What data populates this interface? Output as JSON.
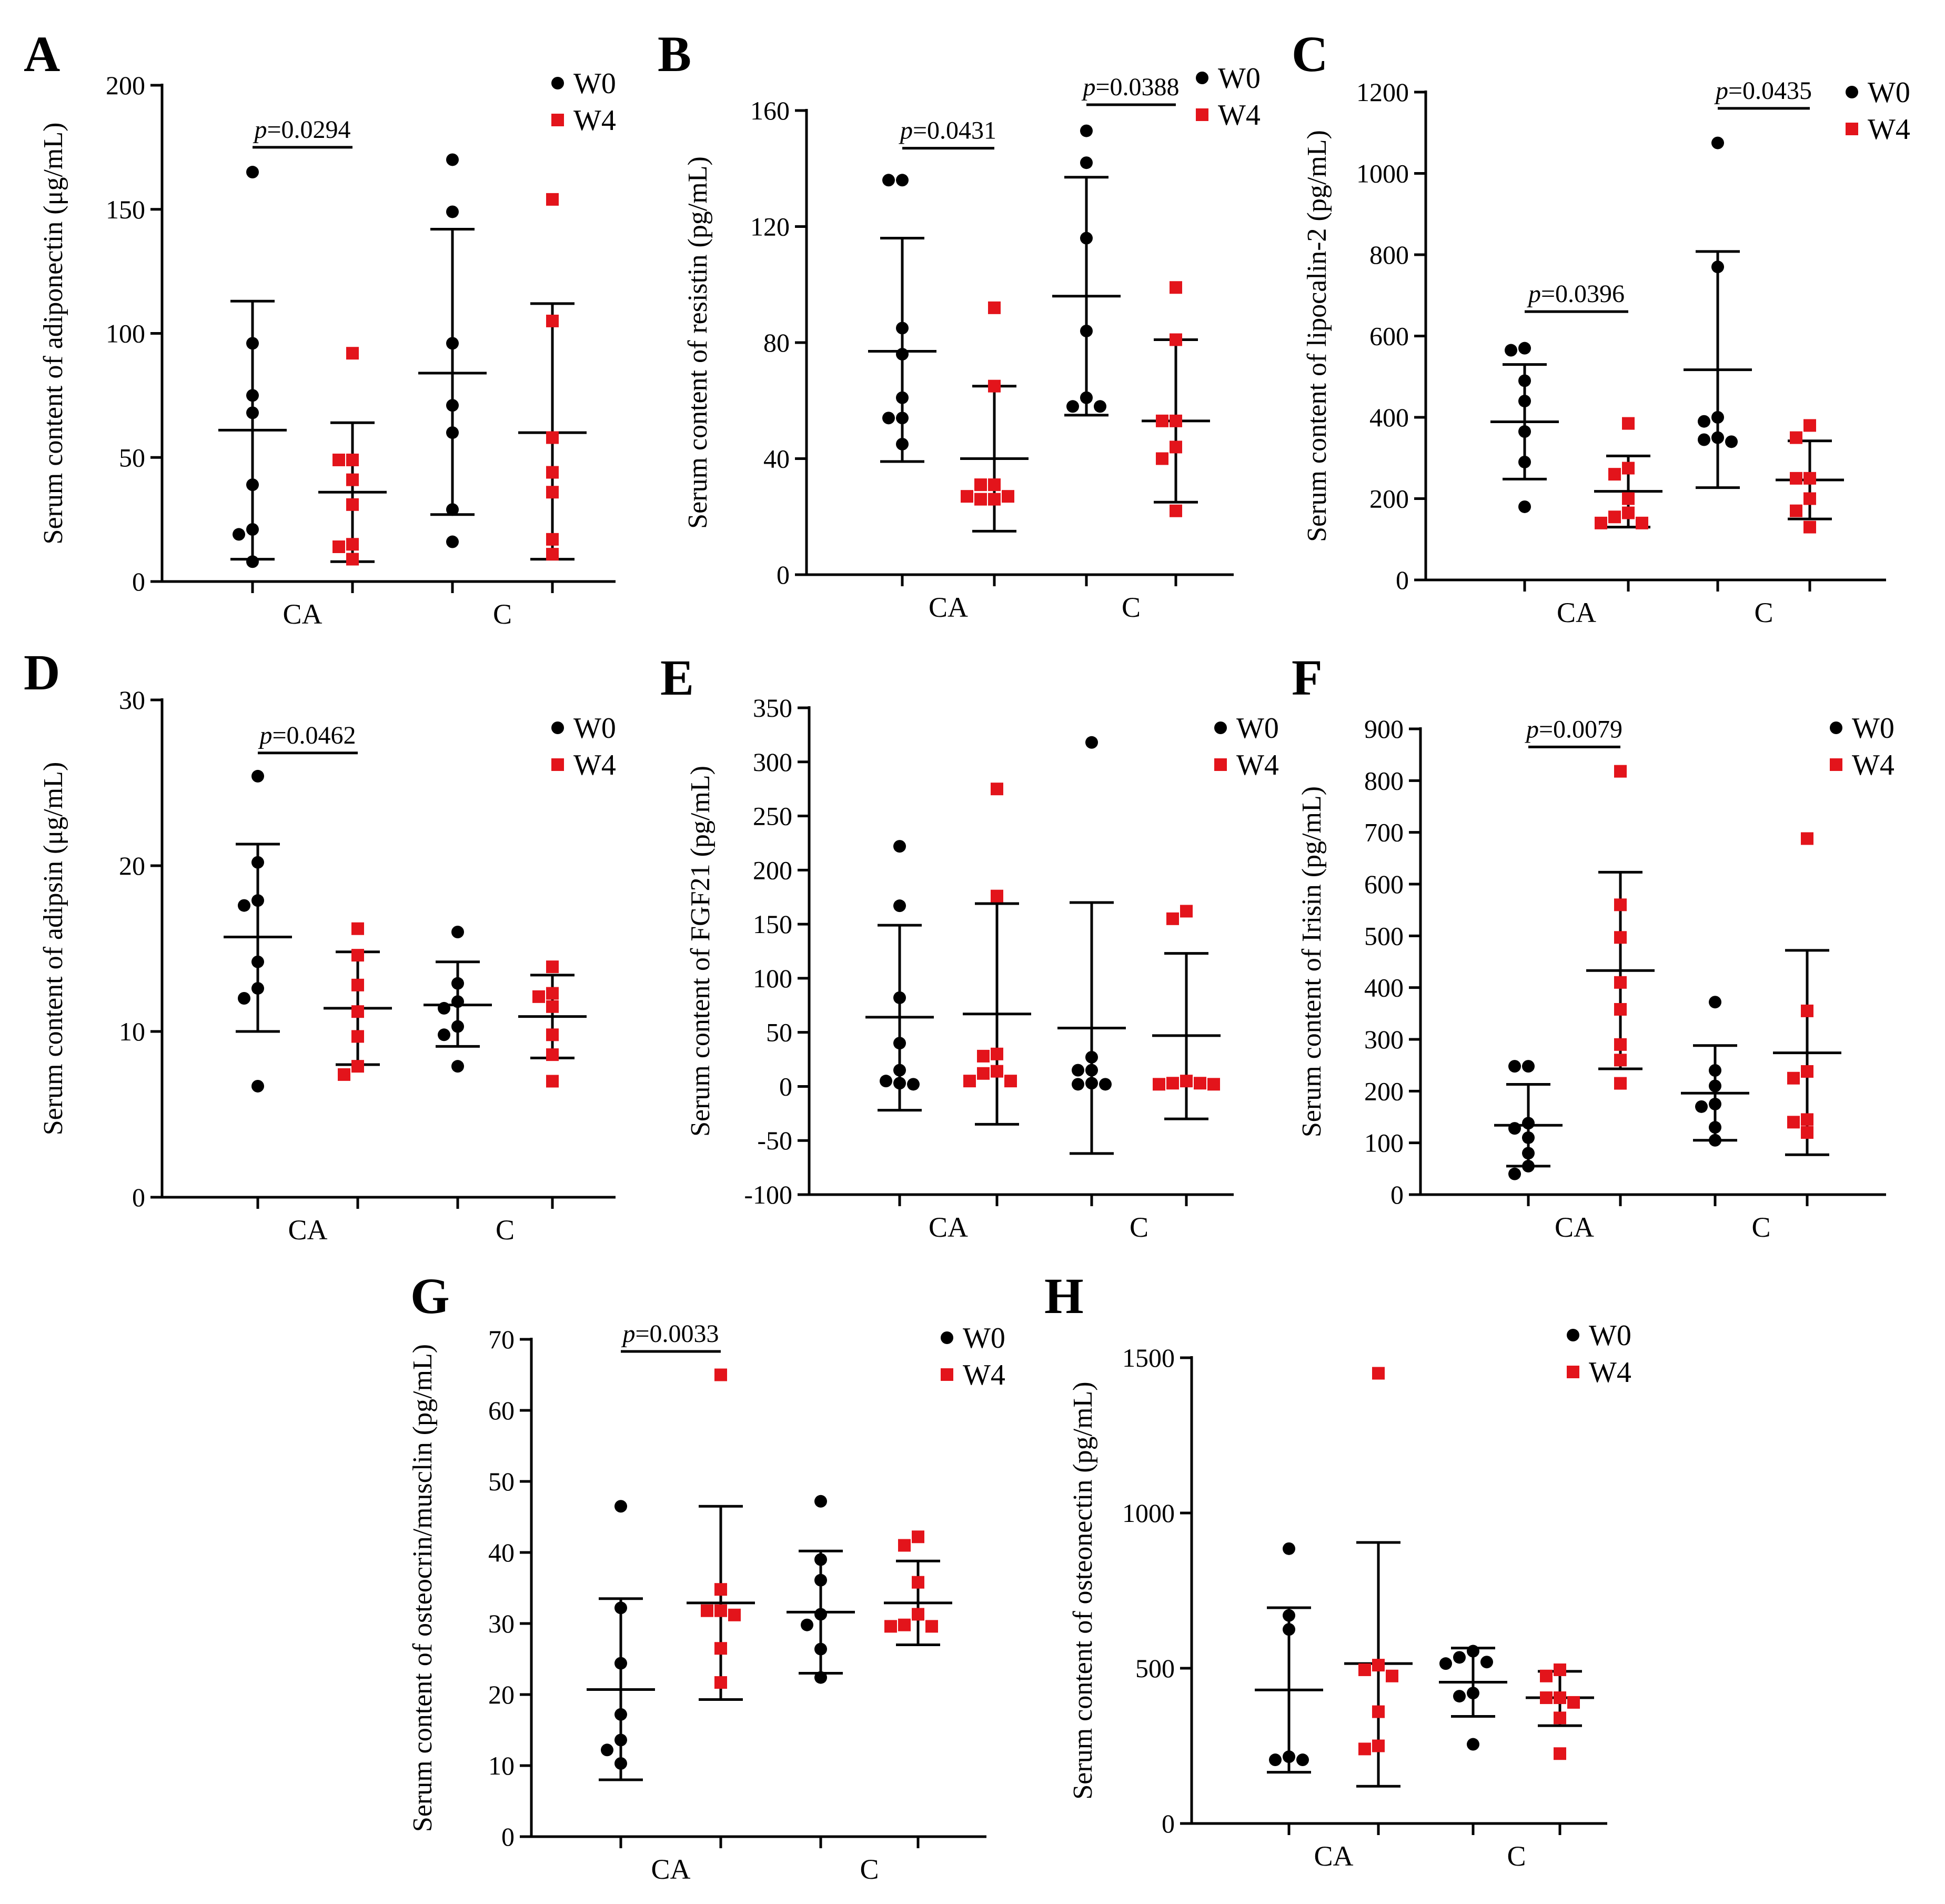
{
  "figure": {
    "legend": {
      "w0": {
        "label": "W0",
        "color": "#000000",
        "marker": "circle"
      },
      "w4": {
        "label": "W4",
        "color": "#e3141b",
        "marker": "square"
      }
    },
    "categories": [
      "CA",
      "C"
    ]
  },
  "chart_data": [
    {
      "panel": "A",
      "type": "scatter",
      "ylabel": "Serum content of adiponectin (μg/mL)",
      "ylim": [
        0,
        200
      ],
      "yticks": [
        "0",
        "50",
        "100",
        "150",
        "200"
      ],
      "categories": [
        "CA",
        "C"
      ],
      "series": [
        {
          "name": "W0",
          "category": "CA",
          "values": [
            165,
            96,
            75,
            68,
            39,
            21,
            19,
            8
          ],
          "mean": 61,
          "sd_low": 9,
          "sd_high": 113
        },
        {
          "name": "W4",
          "category": "CA",
          "values": [
            92,
            49,
            49,
            41,
            31,
            15,
            14,
            9
          ],
          "mean": 36,
          "sd_low": 8,
          "sd_high": 64
        },
        {
          "name": "W0",
          "category": "C",
          "values": [
            170,
            149,
            96,
            71,
            60,
            29,
            16
          ],
          "mean": 84,
          "sd_low": 27,
          "sd_high": 142
        },
        {
          "name": "W4",
          "category": "C",
          "values": [
            154,
            105,
            58,
            44,
            36,
            17,
            11
          ],
          "mean": 60,
          "sd_low": 9,
          "sd_high": 112
        }
      ],
      "significance": [
        {
          "category": "CA",
          "label": "p=0.0294",
          "y": 175
        }
      ]
    },
    {
      "panel": "B",
      "type": "scatter",
      "ylabel": "Serum content of resistin (pg/mL)",
      "ylim": [
        0,
        160
      ],
      "yticks": [
        "0",
        "40",
        "80",
        "120",
        "160"
      ],
      "categories": [
        "CA",
        "C"
      ],
      "series": [
        {
          "name": "W0",
          "category": "CA",
          "values": [
            136,
            136,
            85,
            76,
            61,
            54,
            54,
            45
          ],
          "mean": 77,
          "sd_low": 39,
          "sd_high": 116
        },
        {
          "name": "W4",
          "category": "CA",
          "values": [
            92,
            65,
            31,
            31,
            27,
            27,
            26,
            26
          ],
          "mean": 40,
          "sd_low": 15,
          "sd_high": 65
        },
        {
          "name": "W0",
          "category": "C",
          "values": [
            153,
            142,
            116,
            84,
            61,
            58,
            58
          ],
          "mean": 96,
          "sd_low": 55,
          "sd_high": 137
        },
        {
          "name": "W4",
          "category": "C",
          "values": [
            99,
            81,
            53,
            53,
            44,
            40,
            22
          ],
          "mean": 53,
          "sd_low": 25,
          "sd_high": 81
        }
      ],
      "significance": [
        {
          "category": "CA",
          "label": "p=0.0431",
          "y": 147
        },
        {
          "category": "C",
          "label": "p=0.0388",
          "y": 162
        }
      ]
    },
    {
      "panel": "C",
      "type": "scatter",
      "ylabel": "Serum content of lipocalin-2 (pg/mL)",
      "ylim": [
        0,
        1200
      ],
      "yticks": [
        "0",
        "200",
        "400",
        "600",
        "800",
        "1000",
        "1200"
      ],
      "categories": [
        "CA",
        "C"
      ],
      "series": [
        {
          "name": "W0",
          "category": "CA",
          "values": [
            570,
            565,
            490,
            440,
            365,
            290,
            180
          ],
          "mean": 389,
          "sd_low": 248,
          "sd_high": 530
        },
        {
          "name": "W4",
          "category": "CA",
          "values": [
            385,
            275,
            260,
            200,
            165,
            155,
            140,
            140
          ],
          "mean": 218,
          "sd_low": 130,
          "sd_high": 305
        },
        {
          "name": "W0",
          "category": "C",
          "values": [
            1075,
            770,
            400,
            390,
            350,
            345,
            340
          ],
          "mean": 517,
          "sd_low": 227,
          "sd_high": 808
        },
        {
          "name": "W4",
          "category": "C",
          "values": [
            380,
            350,
            250,
            250,
            200,
            170,
            130
          ],
          "mean": 246,
          "sd_low": 150,
          "sd_high": 342
        }
      ],
      "significance": [
        {
          "category": "CA",
          "label": "p=0.0396",
          "y": 660
        },
        {
          "category": "C",
          "label": "p=0.0435",
          "y": 1160
        }
      ]
    },
    {
      "panel": "D",
      "type": "scatter",
      "ylabel": "Serum content of adipsin (μg/mL)",
      "ylim": [
        0,
        30
      ],
      "yticks": [
        "0",
        "10",
        "20",
        "30"
      ],
      "categories": [
        "CA",
        "C"
      ],
      "series": [
        {
          "name": "W0",
          "category": "CA",
          "values": [
            25.4,
            20.2,
            17.9,
            17.6,
            14.2,
            12.6,
            12.0,
            6.7
          ],
          "mean": 15.7,
          "sd_low": 10.0,
          "sd_high": 21.3
        },
        {
          "name": "W4",
          "category": "CA",
          "values": [
            16.2,
            14.6,
            12.8,
            11.2,
            9.7,
            7.9,
            7.4
          ],
          "mean": 11.4,
          "sd_low": 8.0,
          "sd_high": 14.8
        },
        {
          "name": "W0",
          "category": "C",
          "values": [
            16.0,
            12.9,
            11.8,
            11.4,
            10.3,
            9.8,
            7.9
          ],
          "mean": 11.6,
          "sd_low": 9.1,
          "sd_high": 14.2
        },
        {
          "name": "W4",
          "category": "C",
          "values": [
            13.9,
            12.3,
            12.1,
            11.5,
            9.8,
            8.6,
            7.0
          ],
          "mean": 10.9,
          "sd_low": 8.4,
          "sd_high": 13.4
        }
      ],
      "significance": [
        {
          "category": "CA",
          "label": "p=0.0462",
          "y": 26.8
        }
      ]
    },
    {
      "panel": "E",
      "type": "scatter",
      "ylabel": "Serum content of FGF21 (pg/mL)",
      "ylim": [
        -100,
        350
      ],
      "yticks": [
        "-100",
        "-50",
        "0",
        "50",
        "100",
        "150",
        "200",
        "250",
        "300",
        "350"
      ],
      "categories": [
        "CA",
        "C"
      ],
      "series": [
        {
          "name": "W0",
          "category": "CA",
          "values": [
            222,
            167,
            82,
            40,
            15,
            5,
            3,
            2
          ],
          "mean": 64,
          "sd_low": -22,
          "sd_high": 149
        },
        {
          "name": "W4",
          "category": "CA",
          "values": [
            275,
            176,
            30,
            28,
            14,
            12,
            5,
            5
          ],
          "mean": 67,
          "sd_low": -35,
          "sd_high": 169
        },
        {
          "name": "W0",
          "category": "C",
          "values": [
            318,
            27,
            15,
            15,
            3,
            2,
            2
          ],
          "mean": 54,
          "sd_low": -62,
          "sd_high": 170
        },
        {
          "name": "W4",
          "category": "C",
          "values": [
            162,
            155,
            5,
            3,
            3,
            2,
            2
          ],
          "mean": 47,
          "sd_low": -30,
          "sd_high": 123
        }
      ],
      "significance": []
    },
    {
      "panel": "F",
      "type": "scatter",
      "ylabel": "Serum content of Irisin (pg/mL)",
      "ylim": [
        0,
        900
      ],
      "yticks": [
        "0",
        "100",
        "200",
        "300",
        "400",
        "500",
        "600",
        "700",
        "800",
        "900"
      ],
      "categories": [
        "CA",
        "C"
      ],
      "series": [
        {
          "name": "W0",
          "category": "CA",
          "values": [
            248,
            248,
            138,
            128,
            110,
            80,
            55,
            40
          ],
          "mean": 134,
          "sd_low": 55,
          "sd_high": 213
        },
        {
          "name": "W4",
          "category": "CA",
          "values": [
            818,
            560,
            497,
            410,
            358,
            290,
            260,
            215
          ],
          "mean": 433,
          "sd_low": 243,
          "sd_high": 623
        },
        {
          "name": "W0",
          "category": "C",
          "values": [
            372,
            240,
            210,
            175,
            170,
            130,
            105
          ],
          "mean": 196,
          "sd_low": 105,
          "sd_high": 288
        },
        {
          "name": "W4",
          "category": "C",
          "values": [
            688,
            355,
            238,
            225,
            145,
            140,
            120
          ],
          "mean": 274,
          "sd_low": 77,
          "sd_high": 472
        }
      ],
      "significance": [
        {
          "category": "CA",
          "label": "p=0.0079",
          "y": 865
        }
      ]
    },
    {
      "panel": "G",
      "type": "scatter",
      "ylabel": "Serum content of osteocrin/musclin (pg/mL)",
      "ylim": [
        0,
        70
      ],
      "yticks": [
        "0",
        "10",
        "20",
        "30",
        "40",
        "50",
        "60",
        "70"
      ],
      "categories": [
        "CA",
        "C"
      ],
      "series": [
        {
          "name": "W0",
          "category": "CA",
          "values": [
            46.5,
            32.2,
            24.4,
            17.2,
            13.6,
            12.2,
            10.3
          ],
          "mean": 20.7,
          "sd_low": 8.0,
          "sd_high": 33.5
        },
        {
          "name": "W4",
          "category": "CA",
          "values": [
            65.0,
            34.8,
            31.8,
            31.8,
            31.2,
            26.5,
            21.7
          ],
          "mean": 32.9,
          "sd_low": 19.3,
          "sd_high": 46.5
        },
        {
          "name": "W0",
          "category": "C",
          "values": [
            47.2,
            39.0,
            36.1,
            31.3,
            29.8,
            26.4,
            22.4
          ],
          "mean": 31.6,
          "sd_low": 23.0,
          "sd_high": 40.2
        },
        {
          "name": "W4",
          "category": "C",
          "values": [
            42.2,
            41.0,
            35.8,
            31.3,
            29.8,
            29.6,
            29.6
          ],
          "mean": 32.9,
          "sd_low": 27.0,
          "sd_high": 38.8
        }
      ],
      "significance": [
        {
          "category": "CA",
          "label": "p=0.0033",
          "y": 68.3
        }
      ]
    },
    {
      "panel": "H",
      "type": "scatter",
      "ylabel": "Serum content of osteonectin (pg/mL)",
      "ylim": [
        0,
        1500
      ],
      "yticks": [
        "0",
        "500",
        "1000",
        "1500"
      ],
      "categories": [
        "CA",
        "C"
      ],
      "series": [
        {
          "name": "W0",
          "category": "CA",
          "values": [
            885,
            670,
            625,
            215,
            205,
            205
          ],
          "mean": 430,
          "sd_low": 165,
          "sd_high": 695
        },
        {
          "name": "W4",
          "category": "CA",
          "values": [
            1450,
            510,
            495,
            475,
            360,
            250,
            240
          ],
          "mean": 515,
          "sd_low": 120,
          "sd_high": 905
        },
        {
          "name": "W0",
          "category": "C",
          "values": [
            555,
            535,
            520,
            515,
            420,
            410,
            255
          ],
          "mean": 455,
          "sd_low": 345,
          "sd_high": 565
        },
        {
          "name": "W4",
          "category": "C",
          "values": [
            495,
            475,
            405,
            405,
            390,
            340,
            225
          ],
          "mean": 405,
          "sd_low": 315,
          "sd_high": 490
        }
      ],
      "significance": []
    }
  ]
}
